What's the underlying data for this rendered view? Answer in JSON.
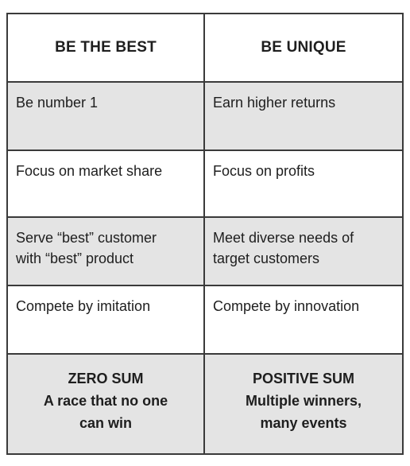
{
  "headers": {
    "left": "BE THE BEST",
    "right": "BE UNIQUE"
  },
  "rows": [
    {
      "left": "Be number 1",
      "right": "Earn higher returns"
    },
    {
      "left": "Focus on market share",
      "right": "Focus on profits"
    },
    {
      "left_lines": [
        "Serve “best” customer",
        "with “best” product"
      ],
      "right_lines": [
        "Meet diverse needs of",
        "target customers"
      ]
    },
    {
      "left": "Compete by imitation",
      "right": "Compete by innovation"
    }
  ],
  "footer": {
    "left": {
      "title": "ZERO SUM",
      "lines": [
        "A race that no one",
        "can win"
      ]
    },
    "right": {
      "title": "POSITIVE SUM",
      "lines": [
        "Multiple winners,",
        "many events"
      ]
    }
  },
  "colors": {
    "border": "#3a3a3a",
    "shade": "#e4e4e4",
    "text": "#1e1e1e"
  }
}
